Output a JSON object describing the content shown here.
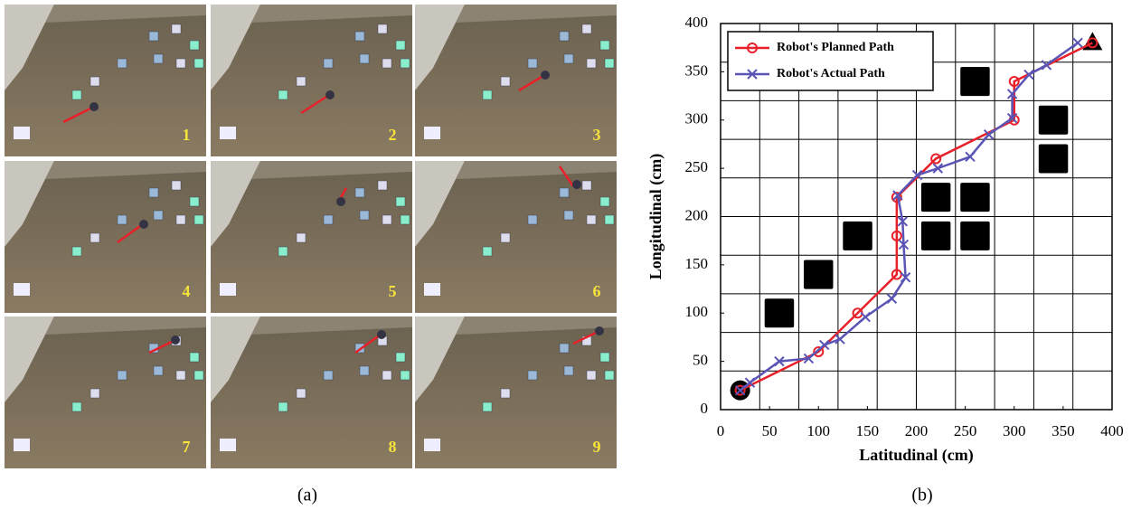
{
  "photo_panel": {
    "frame_labels": [
      "1",
      "2",
      "3",
      "4",
      "5",
      "6",
      "7",
      "8",
      "9"
    ],
    "caption": "(a)"
  },
  "chart_data": {
    "type": "line",
    "caption": "(b)",
    "xlabel": "Latitudinal (cm)",
    "ylabel": "Longitudinal (cm)",
    "xlim": [
      0,
      400
    ],
    "ylim": [
      0,
      400
    ],
    "xticks": [
      0,
      50,
      100,
      150,
      200,
      250,
      300,
      350,
      400
    ],
    "yticks": [
      0,
      50,
      100,
      150,
      200,
      250,
      300,
      350,
      400
    ],
    "grid_x": [
      0,
      40,
      80,
      120,
      160,
      200,
      240,
      280,
      320,
      360,
      400
    ],
    "grid_y": [
      0,
      40,
      80,
      120,
      160,
      200,
      240,
      280,
      320,
      360,
      400
    ],
    "legend": "upper left",
    "series": [
      {
        "name": "Robot's Planned Path",
        "color": "#e8202a",
        "marker": "circle",
        "x": [
          20,
          100,
          140,
          180,
          180,
          180,
          220,
          300,
          300,
          380
        ],
        "values": [
          20,
          60,
          100,
          140,
          180,
          220,
          260,
          300,
          340,
          380
        ]
      },
      {
        "name": "Robot's Actual Path",
        "color": "#5a55b5",
        "marker": "x",
        "x": [
          20,
          30,
          60,
          90,
          106,
          122,
          148,
          175,
          189,
          187,
          186,
          181,
          201,
          222,
          255,
          274,
          298,
          298,
          315,
          333,
          365
        ],
        "values": [
          20,
          28,
          50,
          53,
          67,
          73,
          96,
          115,
          137,
          171,
          195,
          222,
          243,
          250,
          262,
          285,
          302,
          327,
          347,
          357,
          380
        ]
      }
    ],
    "obstacles": {
      "x": [
        60,
        100,
        140,
        220,
        260,
        220,
        260,
        260,
        340,
        340
      ],
      "y": [
        100,
        140,
        180,
        220,
        220,
        180,
        180,
        340,
        300,
        260
      ],
      "size": 30
    },
    "start": {
      "x": 20,
      "y": 20
    },
    "goal": {
      "x": 380,
      "y": 380
    }
  }
}
